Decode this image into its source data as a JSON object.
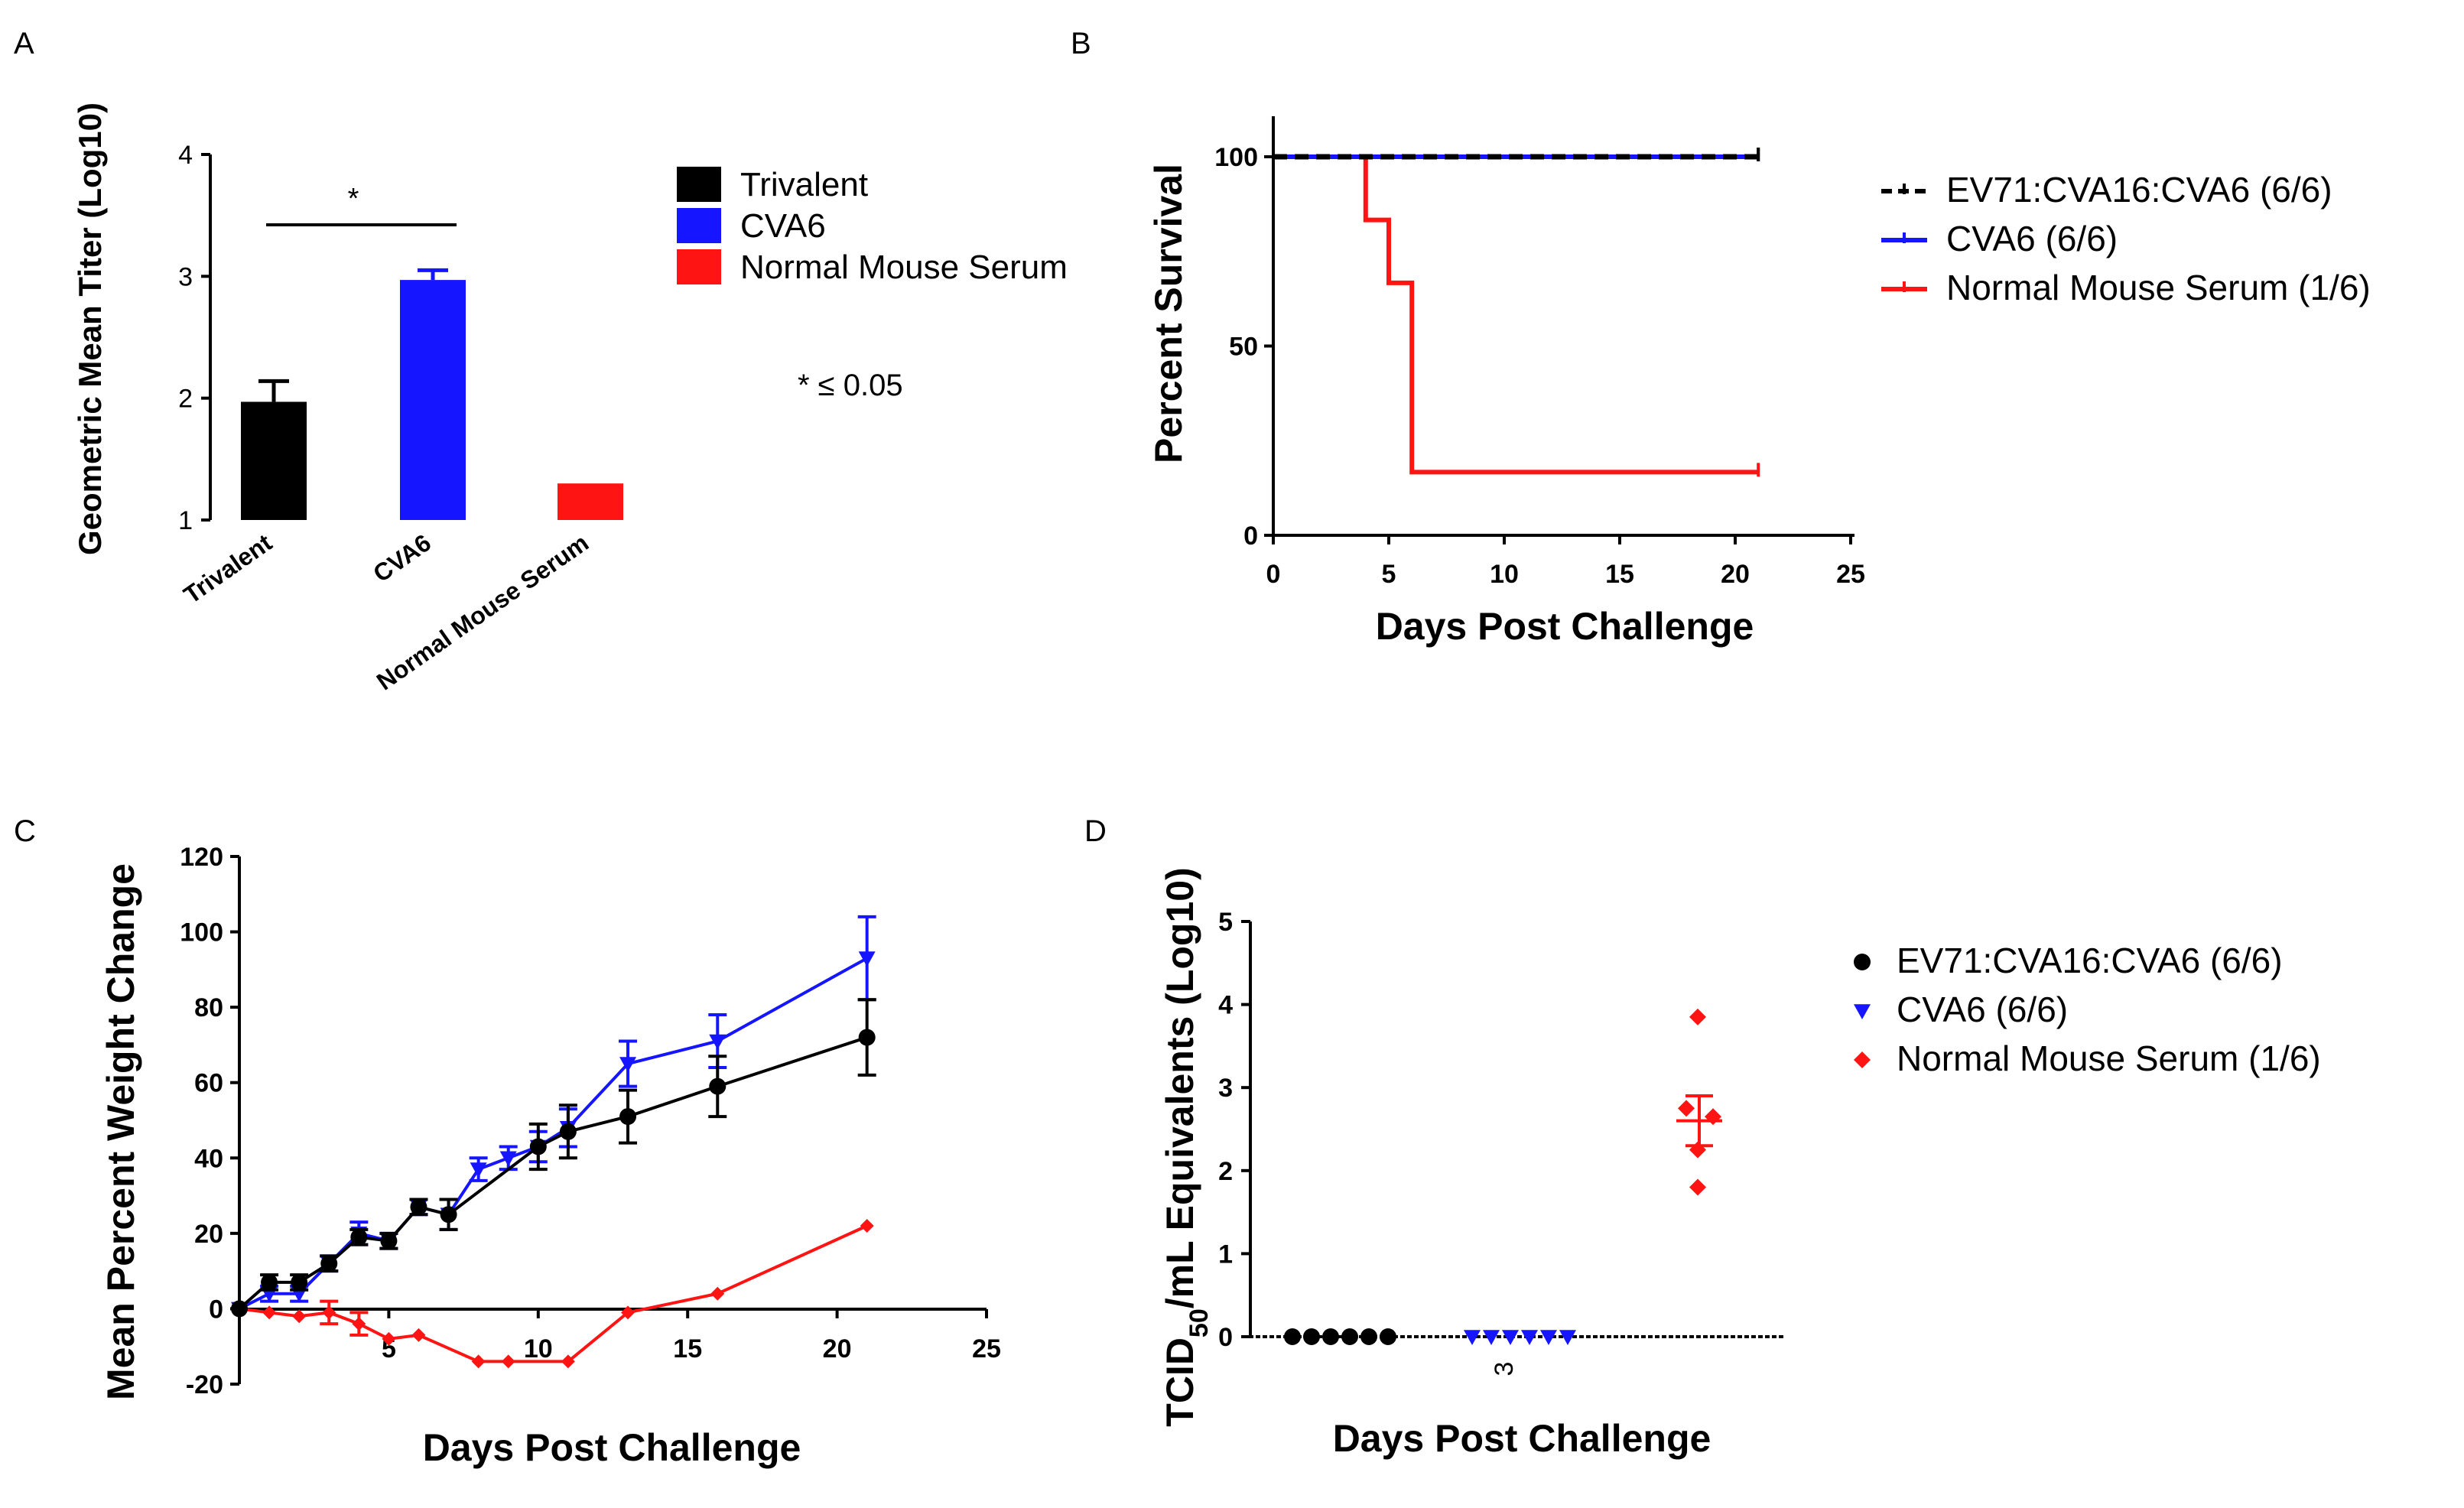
{
  "colors": {
    "black": "#000000",
    "blue": "#1515ff",
    "red": "#ff1414"
  },
  "chart_data": [
    {
      "panel": "A",
      "type": "bar",
      "ylabel": "Geometric Mean Titer (Log10)",
      "ylim": [
        1,
        4
      ],
      "yticks": [
        1,
        2,
        3,
        4
      ],
      "categories": [
        "Trivalent",
        "CVA6",
        "Normal Mouse Serum"
      ],
      "values": [
        1.97,
        2.97,
        1.3
      ],
      "errors": [
        0.17,
        0.08,
        0
      ],
      "bar_colors": [
        "#000000",
        "#1515ff",
        "#ff1414"
      ],
      "significance": {
        "label": "*",
        "between": [
          0,
          1
        ]
      },
      "annotation": "* ≤ 0.05",
      "legend": [
        {
          "label": "Trivalent",
          "color": "#000000"
        },
        {
          "label": "CVA6",
          "color": "#1515ff"
        },
        {
          "label": "Normal Mouse Serum",
          "color": "#ff1414"
        }
      ]
    },
    {
      "panel": "B",
      "type": "line",
      "subtype": "survival-step",
      "xlabel": "Days Post Challenge",
      "ylabel": "Percent Survival",
      "xlim": [
        0,
        25
      ],
      "ylim": [
        0,
        110
      ],
      "xticks": [
        0,
        5,
        10,
        15,
        20,
        25
      ],
      "yticks": [
        0,
        50,
        100
      ],
      "series": [
        {
          "name": "EV71:CVA16:CVA6 (6/6)",
          "color": "#000000",
          "dashed": true,
          "x": [
            0,
            21
          ],
          "y": [
            100,
            100
          ]
        },
        {
          "name": "CVA6 (6/6)",
          "color": "#1515ff",
          "dashed": false,
          "x": [
            0,
            21
          ],
          "y": [
            100,
            100
          ]
        },
        {
          "name": "Normal Mouse Serum (1/6)",
          "color": "#ff1414",
          "dashed": false,
          "x": [
            0,
            4,
            5,
            6,
            21
          ],
          "y": [
            100,
            83.3,
            66.7,
            16.7,
            16.7
          ]
        }
      ],
      "legend_position": "right"
    },
    {
      "panel": "C",
      "type": "line",
      "xlabel": "Days Post Challenge",
      "ylabel": "Mean Percent Weight Change",
      "xlim": [
        0,
        25
      ],
      "ylim": [
        -20,
        120
      ],
      "xticks": [
        5,
        10,
        15,
        20,
        25
      ],
      "yticks": [
        -20,
        0,
        20,
        40,
        60,
        80,
        100,
        120
      ],
      "series": [
        {
          "color": "#1515ff",
          "marker": "triangle-down",
          "x": [
            0,
            1,
            2,
            3,
            4,
            5,
            6,
            7,
            8,
            9,
            10,
            11,
            13,
            16,
            21
          ],
          "y": [
            0,
            4,
            4,
            12,
            20,
            18,
            27,
            25,
            37,
            40,
            43,
            48,
            65,
            71,
            93
          ],
          "err": [
            0,
            2,
            2,
            2,
            3,
            2,
            2,
            4,
            3,
            3,
            4,
            5,
            6,
            7,
            11
          ]
        },
        {
          "color": "#000000",
          "marker": "circle",
          "x": [
            0,
            1,
            2,
            3,
            4,
            5,
            6,
            7,
            10,
            11,
            13,
            16,
            21
          ],
          "y": [
            0,
            7,
            7,
            12,
            19,
            18,
            27,
            25,
            43,
            47,
            51,
            59,
            72
          ],
          "err": [
            0,
            2,
            2,
            2,
            2,
            2,
            2,
            4,
            6,
            7,
            7,
            8,
            10
          ]
        },
        {
          "color": "#ff1414",
          "marker": "diamond",
          "x": [
            0,
            1,
            2,
            3,
            4,
            5,
            6,
            8,
            9,
            11,
            13,
            16,
            21
          ],
          "y": [
            0,
            -1,
            -2,
            -1,
            -4,
            -8,
            -7,
            -14,
            -14,
            -14,
            -1,
            4,
            22
          ],
          "err": [
            0,
            1,
            1,
            3,
            3,
            1,
            1,
            1,
            1,
            1,
            1,
            1,
            1
          ]
        }
      ]
    },
    {
      "panel": "D",
      "type": "scatter",
      "xlabel": "Days Post Challenge",
      "ylabel": "TCID50/mL Equivalents (Log10)",
      "ylabel_parts": {
        "main": "TCID",
        "sub": "50",
        "rest": "/mL Equivalents (Log10)"
      },
      "ylim": [
        0,
        5
      ],
      "yticks": [
        0,
        1,
        2,
        3,
        4,
        5
      ],
      "x_tick_labels": [
        "3"
      ],
      "groups": [
        {
          "name": "EV71:CVA16:CVA6 (6/6)",
          "color": "#000000",
          "marker": "circle",
          "values": [
            0,
            0,
            0,
            0,
            0,
            0
          ]
        },
        {
          "name": "CVA6 (6/6)",
          "color": "#1515ff",
          "marker": "triangle-down",
          "values": [
            0,
            0,
            0,
            0,
            0,
            0
          ]
        },
        {
          "name": "Normal Mouse Serum (1/6)",
          "color": "#ff1414",
          "marker": "diamond",
          "values": [
            3.85,
            2.75,
            2.65,
            2.25,
            1.8
          ],
          "mean": 2.6,
          "sd_upper": 2.9,
          "sd_lower": 2.3
        }
      ],
      "legend_position": "right"
    }
  ],
  "panels": {
    "a": "A",
    "b": "B",
    "c": "C",
    "d": "D"
  }
}
